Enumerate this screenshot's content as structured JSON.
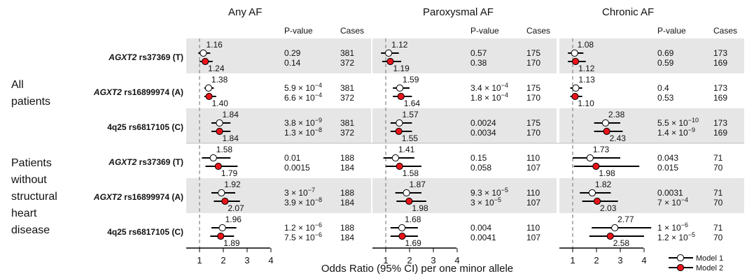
{
  "chart_data": {
    "type": "forest",
    "xlabel": "Odds Ratio (95% CI) per one minor allele",
    "x_ticks": [
      "1",
      "2",
      "3",
      "4"
    ],
    "xlim": [
      0.5,
      4.5
    ],
    "reference_line": 1,
    "column_headers": {
      "pvalue": "P-value",
      "cases": "Cases"
    },
    "panels": [
      {
        "title": "Any AF",
        "id": "any"
      },
      {
        "title": "Paroxysmal AF",
        "id": "par"
      },
      {
        "title": "Chronic AF",
        "id": "chr"
      }
    ],
    "groups": [
      {
        "label": "All\npatients"
      },
      {
        "label": "Patients\nwithout\nstructural\nheart\ndisease"
      }
    ],
    "row_labels": [
      {
        "gene": "AGXT2",
        "rest": " rs37369 (T)"
      },
      {
        "gene": "AGXT2",
        "rest": " rs16899974 (A)"
      },
      {
        "gene": "",
        "rest": "4q25 rs6817105 (C)"
      },
      {
        "gene": "AGXT2",
        "rest": " rs37369 (T)"
      },
      {
        "gene": "AGXT2",
        "rest": " rs16899974 (A)"
      },
      {
        "gene": "",
        "rest": "4q25 rs6817105 (C)"
      }
    ],
    "rows": [
      [
        [
          {
            "or": 1.16,
            "lo": 0.95,
            "hi": 1.45,
            "p": "0.29",
            "cases": "381"
          },
          {
            "or": 1.24,
            "lo": 1.0,
            "hi": 1.55,
            "p": "0.14",
            "cases": "372"
          }
        ],
        [
          {
            "or": 1.12,
            "lo": 0.8,
            "hi": 1.55,
            "p": "0.57",
            "cases": "175"
          },
          {
            "or": 1.19,
            "lo": 0.85,
            "hi": 1.65,
            "p": "0.38",
            "cases": "170"
          }
        ],
        [
          {
            "or": 1.08,
            "lo": 0.8,
            "hi": 1.45,
            "p": "0.69",
            "cases": "173"
          },
          {
            "or": 1.12,
            "lo": 0.8,
            "hi": 1.55,
            "p": "0.59",
            "cases": "169"
          }
        ]
      ],
      [
        [
          {
            "or": 1.38,
            "lo": 1.2,
            "hi": 1.6,
            "p": "5.9|-4",
            "cases": "381"
          },
          {
            "or": 1.4,
            "lo": 1.2,
            "hi": 1.7,
            "p": "6.6|-4",
            "cases": "372"
          }
        ],
        [
          {
            "or": 1.59,
            "lo": 1.3,
            "hi": 2.0,
            "p": "3.4|-4",
            "cases": "175"
          },
          {
            "or": 1.64,
            "lo": 1.3,
            "hi": 2.1,
            "p": "1.8|-4",
            "cases": "170"
          }
        ],
        [
          {
            "or": 1.13,
            "lo": 0.9,
            "hi": 1.4,
            "p": "0.4",
            "cases": "173"
          },
          {
            "or": 1.1,
            "lo": 0.9,
            "hi": 1.4,
            "p": "0.53",
            "cases": "169"
          }
        ]
      ],
      [
        [
          {
            "or": 1.84,
            "lo": 1.5,
            "hi": 2.3,
            "p": "3.8|-9",
            "cases": "381"
          },
          {
            "or": 1.84,
            "lo": 1.5,
            "hi": 2.3,
            "p": "1.3|-8",
            "cases": "372"
          }
        ],
        [
          {
            "or": 1.57,
            "lo": 1.2,
            "hi": 2.1,
            "p": "0.0024",
            "cases": "175"
          },
          {
            "or": 1.55,
            "lo": 1.2,
            "hi": 2.1,
            "p": "0.0034",
            "cases": "170"
          }
        ],
        [
          {
            "or": 2.38,
            "lo": 1.9,
            "hi": 3.0,
            "p": "5.5|-10",
            "cases": "173"
          },
          {
            "or": 2.43,
            "lo": 1.9,
            "hi": 3.1,
            "p": "1.4|-9",
            "cases": "169"
          }
        ]
      ],
      [
        [
          {
            "or": 1.58,
            "lo": 1.1,
            "hi": 2.3,
            "p": "0.01",
            "cases": "188"
          },
          {
            "or": 1.79,
            "lo": 1.25,
            "hi": 2.6,
            "p": "0.0015",
            "cases": "184"
          }
        ],
        [
          {
            "or": 1.41,
            "lo": 0.9,
            "hi": 2.2,
            "p": "0.15",
            "cases": "110"
          },
          {
            "or": 1.58,
            "lo": 1.0,
            "hi": 2.5,
            "p": "0.058",
            "cases": "107"
          }
        ],
        [
          {
            "or": 1.73,
            "lo": 1.0,
            "hi": 3.0,
            "p": "0.043",
            "cases": "71"
          },
          {
            "or": 1.98,
            "lo": 1.05,
            "hi": 3.8,
            "p": "0.015",
            "cases": "70"
          }
        ]
      ],
      [
        [
          {
            "or": 1.92,
            "lo": 1.5,
            "hi": 2.5,
            "p": "3|-7",
            "cases": "188"
          },
          {
            "or": 2.07,
            "lo": 1.6,
            "hi": 2.7,
            "p": "3.9|-8",
            "cases": "184"
          }
        ],
        [
          {
            "or": 1.87,
            "lo": 1.4,
            "hi": 2.5,
            "p": "9.3|-5",
            "cases": "110"
          },
          {
            "or": 1.98,
            "lo": 1.45,
            "hi": 2.7,
            "p": "3|-5",
            "cases": "107"
          }
        ],
        [
          {
            "or": 1.82,
            "lo": 1.3,
            "hi": 2.6,
            "p": "0.0031",
            "cases": "71"
          },
          {
            "or": 2.03,
            "lo": 1.4,
            "hi": 2.9,
            "p": "7|-4",
            "cases": "70"
          }
        ]
      ],
      [
        [
          {
            "or": 1.96,
            "lo": 1.5,
            "hi": 2.55,
            "p": "1.2|-6",
            "cases": "188"
          },
          {
            "or": 1.89,
            "lo": 1.45,
            "hi": 2.45,
            "p": "7.5|-6",
            "cases": "184"
          }
        ],
        [
          {
            "or": 1.68,
            "lo": 1.2,
            "hi": 2.35,
            "p": "0.004",
            "cases": "110"
          },
          {
            "or": 1.69,
            "lo": 1.2,
            "hi": 2.35,
            "p": "0.0041",
            "cases": "107"
          }
        ],
        [
          {
            "or": 2.77,
            "lo": 1.8,
            "hi": 4.3,
            "p": "1|-6",
            "cases": "71"
          },
          {
            "or": 2.58,
            "lo": 1.7,
            "hi": 4.0,
            "p": "1.2|-5",
            "cases": "70"
          }
        ]
      ]
    ],
    "legend": [
      {
        "label": "Model 1",
        "fill": "#ffffff"
      },
      {
        "label": "Model 2",
        "fill": "#e8141a"
      }
    ],
    "colors": {
      "model1": "#ffffff",
      "model2": "#e8141a",
      "shade": "#e6e6e6",
      "refline": "#9a9a9a"
    }
  }
}
